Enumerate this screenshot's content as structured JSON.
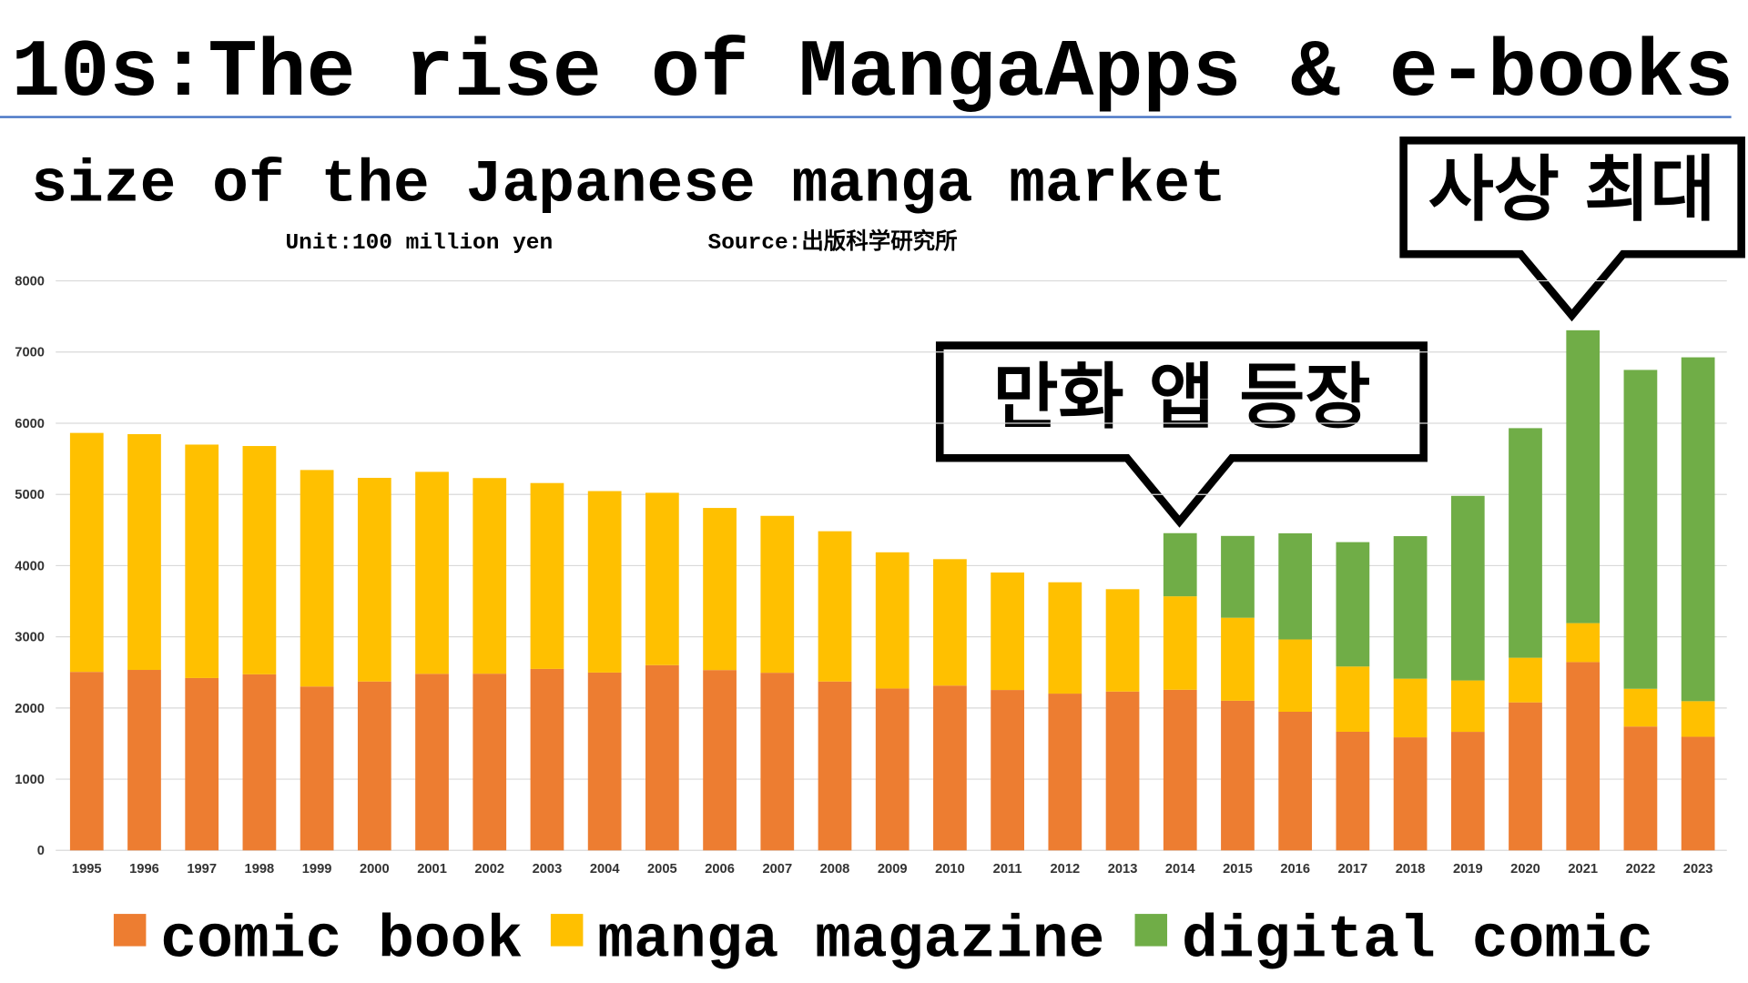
{
  "chart_data": {
    "type": "stacked_bar",
    "title": "10s:The rise of MangaApps & e-books",
    "subtitle": "size of the Japanese manga market",
    "unit_note": "Unit:100 million yen",
    "source_note": "Source:出版科学研究所",
    "categories": [
      "1995",
      "1996",
      "1997",
      "1998",
      "1999",
      "2000",
      "2001",
      "2002",
      "2003",
      "2004",
      "2005",
      "2006",
      "2007",
      "2008",
      "2009",
      "2010",
      "2011",
      "2012",
      "2013",
      "2014",
      "2015",
      "2016",
      "2017",
      "2018",
      "2019",
      "2020",
      "2021",
      "2022",
      "2023"
    ],
    "series": [
      {
        "name": "comic book",
        "color": "#ed7d31",
        "values": [
          2507,
          2535,
          2421,
          2473,
          2302,
          2372,
          2480,
          2482,
          2549,
          2498,
          2602,
          2533,
          2495,
          2372,
          2274,
          2315,
          2253,
          2202,
          2231,
          2256,
          2102,
          1947,
          1666,
          1588,
          1665,
          2079,
          2645,
          1740,
          1596
        ]
      },
      {
        "name": "manga magazine",
        "color": "#ffc000",
        "values": [
          3357,
          3312,
          3279,
          3207,
          3041,
          2861,
          2837,
          2748,
          2611,
          2549,
          2421,
          2277,
          2204,
          2111,
          1913,
          1776,
          1650,
          1564,
          1438,
          1313,
          1166,
          1016,
          917,
          824,
          722,
          627,
          547,
          530,
          500
        ]
      },
      {
        "name": "digital comic",
        "color": "#70ad47",
        "values": [
          null,
          null,
          null,
          null,
          null,
          null,
          null,
          null,
          null,
          null,
          null,
          null,
          null,
          null,
          null,
          null,
          null,
          null,
          null,
          887,
          1149,
          1491,
          1747,
          2002,
          2593,
          3225,
          4114,
          4479,
          4830
        ]
      }
    ],
    "ylim": [
      0,
      8000
    ],
    "yticks": [
      0,
      1000,
      2000,
      3000,
      4000,
      5000,
      6000,
      7000,
      8000
    ],
    "grid": true,
    "annotations": [
      {
        "text": "만화 앱 등장"
      },
      {
        "text": "사상 최대"
      }
    ]
  }
}
